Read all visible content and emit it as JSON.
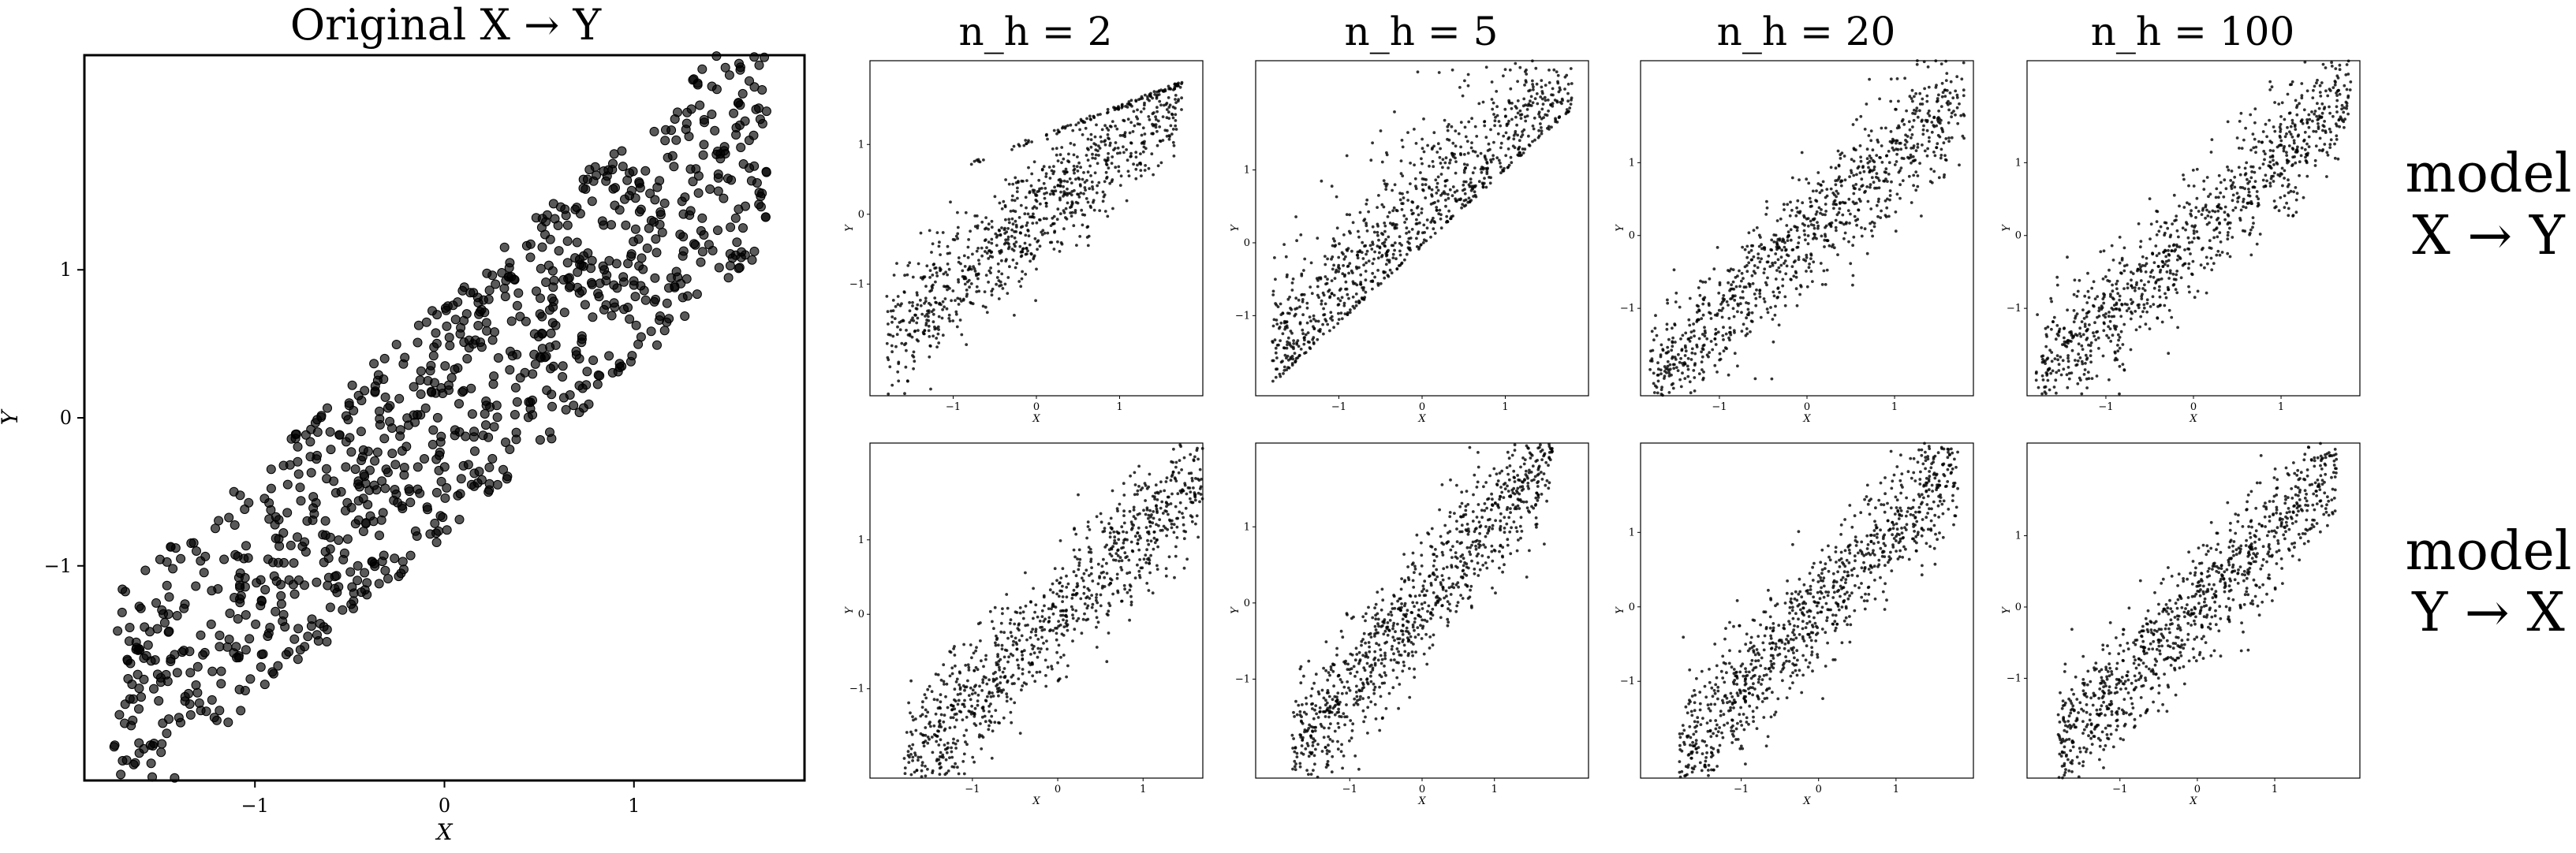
{
  "figure": {
    "main_title": "Original X → Y",
    "row_labels": [
      {
        "line1": "model",
        "line2": "X → Y"
      },
      {
        "line1": "model",
        "line2": "Y → X"
      }
    ],
    "column_titles": [
      "n_h = 2",
      "n_h = 5",
      "n_h = 20",
      "n_h = 100"
    ],
    "point_color": "#000000"
  },
  "chart_data": [
    {
      "id": "original",
      "type": "scatter",
      "title": "Original X → Y",
      "xlabel": "X",
      "ylabel": "Y",
      "xlim": [
        -1.9,
        1.9
      ],
      "ylim": [
        -2.45,
        2.45
      ],
      "xticks": [
        -1,
        0,
        1
      ],
      "yticks": [
        -1,
        0,
        1
      ],
      "n_points": 1000,
      "relation": "uniform band around y = 1.15·x, half-width ≈ 0.8",
      "seed": 11
    },
    {
      "id": "xy_nh2",
      "type": "scatter",
      "xlabel": "X",
      "ylabel": "Y",
      "xlim": [
        -2.0,
        2.0
      ],
      "ylim": [
        -2.6,
        2.2
      ],
      "xticks": [
        -1,
        0,
        1
      ],
      "yticks": [
        -1,
        0,
        1
      ],
      "n_points": 1000,
      "feature": "sharp upper edge near top",
      "seed": 21
    },
    {
      "id": "xy_nh5",
      "type": "scatter",
      "xlabel": "X",
      "ylabel": "Y",
      "xlim": [
        -2.0,
        2.0
      ],
      "ylim": [
        -2.1,
        2.5
      ],
      "xticks": [
        -1,
        0,
        1
      ],
      "yticks": [
        -1,
        0,
        1
      ],
      "n_points": 1000,
      "feature": "sharp lower edge along diagonal",
      "seed": 22
    },
    {
      "id": "xy_nh20",
      "type": "scatter",
      "xlabel": "X",
      "ylabel": "Y",
      "xlim": [
        -1.9,
        1.9
      ],
      "ylim": [
        -2.2,
        2.4
      ],
      "xticks": [
        -1,
        0,
        1
      ],
      "yticks": [
        -1,
        0,
        1
      ],
      "n_points": 1000,
      "feature": "band",
      "seed": 23
    },
    {
      "id": "xy_nh100",
      "type": "scatter",
      "xlabel": "X",
      "ylabel": "Y",
      "xlim": [
        -1.9,
        1.9
      ],
      "ylim": [
        -2.2,
        2.4
      ],
      "xticks": [
        -1,
        0,
        1
      ],
      "yticks": [
        -1,
        0,
        1
      ],
      "n_points": 1000,
      "feature": "band",
      "seed": 24
    },
    {
      "id": "yx_nh2",
      "type": "scatter",
      "xlabel": "X",
      "ylabel": "Y",
      "xlim": [
        -2.2,
        1.7
      ],
      "ylim": [
        -2.2,
        2.3
      ],
      "xticks": [
        -1,
        0,
        1
      ],
      "yticks": [
        -1,
        0,
        1
      ],
      "n_points": 1000,
      "feature": "band",
      "seed": 31
    },
    {
      "id": "yx_nh5",
      "type": "scatter",
      "xlabel": "X",
      "ylabel": "Y",
      "xlim": [
        -2.3,
        2.3
      ],
      "ylim": [
        -2.3,
        2.1
      ],
      "xticks": [
        -1,
        0,
        1
      ],
      "yticks": [
        -1,
        0,
        1
      ],
      "n_points": 1000,
      "feature": "band",
      "seed": 32
    },
    {
      "id": "yx_nh20",
      "type": "scatter",
      "xlabel": "X",
      "ylabel": "Y",
      "xlim": [
        -2.3,
        2.0
      ],
      "ylim": [
        -2.3,
        2.2
      ],
      "xticks": [
        -1,
        0,
        1
      ],
      "yticks": [
        -1,
        0,
        1
      ],
      "n_points": 1000,
      "feature": "band",
      "seed": 33
    },
    {
      "id": "yx_nh100",
      "type": "scatter",
      "xlabel": "X",
      "ylabel": "Y",
      "xlim": [
        -2.2,
        2.1
      ],
      "ylim": [
        -2.4,
        2.3
      ],
      "xticks": [
        -1,
        0,
        1
      ],
      "yticks": [
        -1,
        0,
        1
      ],
      "n_points": 1000,
      "feature": "band",
      "seed": 34
    }
  ]
}
